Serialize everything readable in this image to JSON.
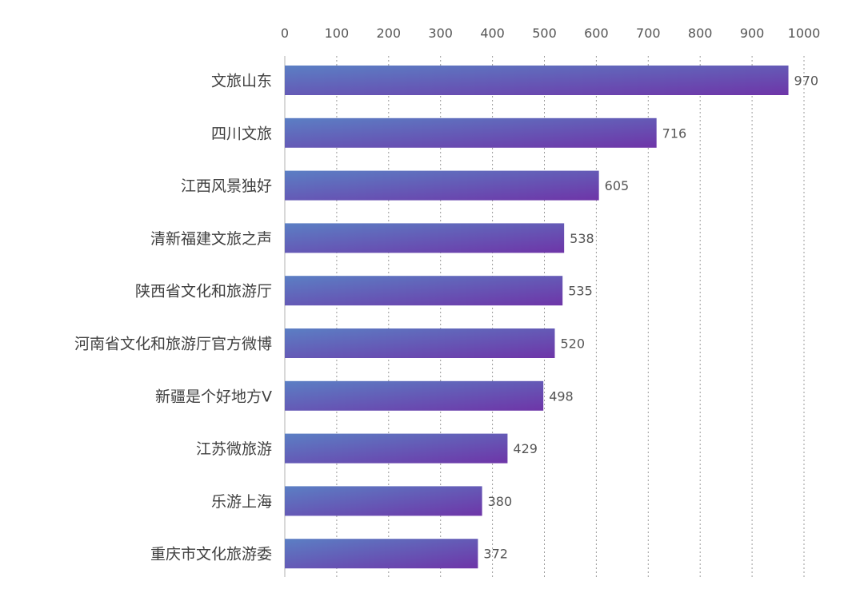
{
  "chart_data": {
    "type": "bar",
    "orientation": "horizontal",
    "categories": [
      "文旅山东",
      "四川文旅",
      "江西风景独好",
      "清新福建文旅之声",
      "陕西省文化和旅游厅",
      "河南省文化和旅游厅官方微博",
      "新疆是个好地方V",
      "江苏微旅游",
      "乐游上海",
      "重庆市文化旅游委"
    ],
    "values": [
      970,
      716,
      605,
      538,
      535,
      520,
      498,
      429,
      380,
      372
    ],
    "value_labels": [
      "970",
      "716",
      "605",
      "538",
      "535",
      "520",
      "498",
      "429",
      "380",
      "372"
    ],
    "xlim": [
      0,
      1000
    ],
    "xticks": [
      "0",
      "100",
      "200",
      "300",
      "400",
      "500",
      "600",
      "700",
      "800",
      "900",
      "1000"
    ],
    "x_axis_position": "top",
    "grid": "vertical dotted",
    "legend": "none",
    "colors": {
      "bar_start": "#5b7fc4",
      "bar_end": "#6e35a8",
      "grid": "#9a9a9a",
      "axis": "#b0b0b0"
    }
  }
}
